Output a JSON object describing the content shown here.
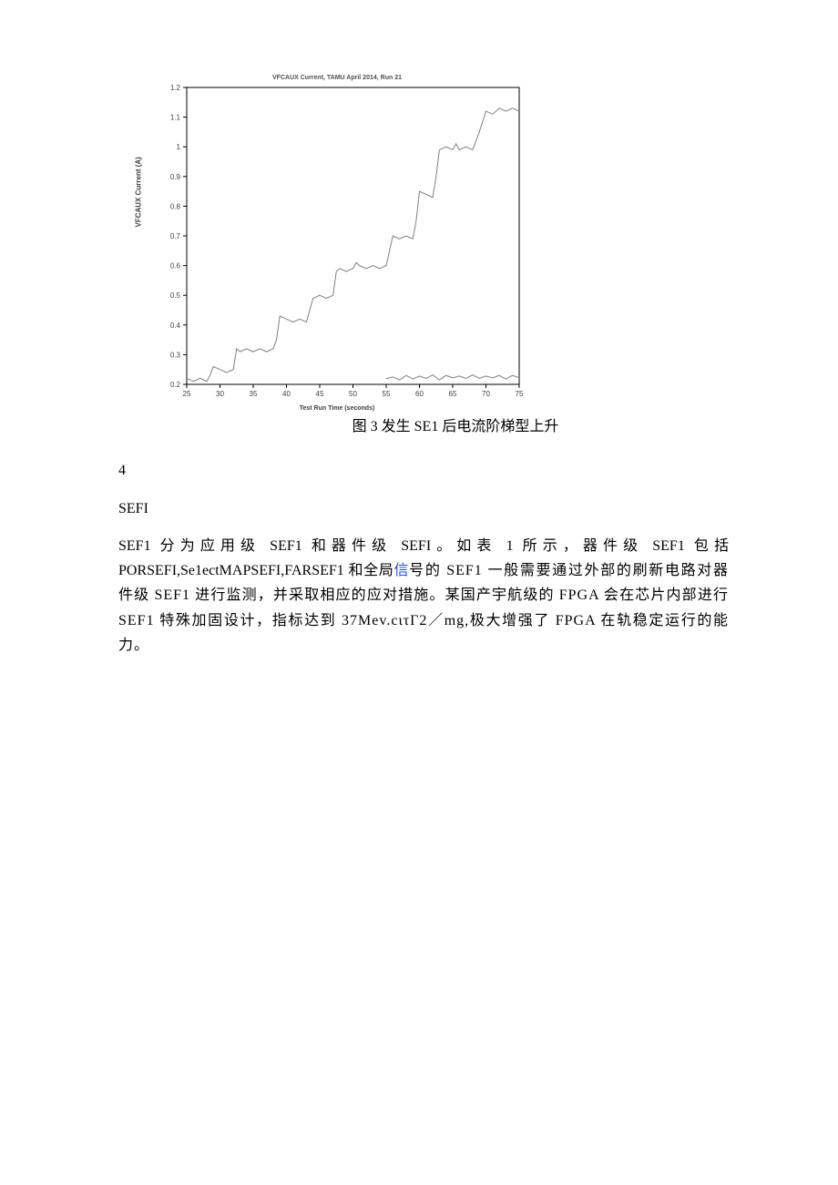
{
  "chart": {
    "type": "line",
    "title": "VFCAUX Current, TAMU April 2014, Run 21",
    "ylabel": "VFCAUX Current (A)",
    "xlabel": "Test Run Time (seconds)",
    "xlim": [
      25,
      75
    ],
    "ylim": [
      0.2,
      1.2
    ],
    "xticks": [
      25,
      30,
      35,
      40,
      45,
      50,
      55,
      60,
      65,
      70,
      75
    ],
    "yticks": [
      0.2,
      0.3,
      0.4,
      0.5,
      0.6,
      0.7,
      0.8,
      0.9,
      1.0,
      1.1,
      1.2
    ],
    "series1": {
      "color": "#808080",
      "width": 1,
      "x": [
        25,
        26,
        27,
        28,
        28.5,
        29,
        30,
        31,
        32,
        32.5,
        33,
        34,
        35,
        36,
        37,
        38,
        38.5,
        39,
        40,
        41,
        42,
        43,
        43.5,
        44,
        45,
        46,
        47,
        47.5,
        48,
        49,
        50,
        50.5,
        51,
        52,
        53,
        54,
        55,
        55.5,
        56,
        57,
        58,
        59,
        59.5,
        60,
        61,
        62,
        62.5,
        63,
        64,
        65,
        65.5,
        66,
        67,
        68,
        69,
        70,
        71,
        72,
        73,
        74,
        75
      ],
      "y": [
        0.22,
        0.21,
        0.22,
        0.21,
        0.23,
        0.26,
        0.25,
        0.24,
        0.25,
        0.32,
        0.31,
        0.32,
        0.31,
        0.32,
        0.31,
        0.32,
        0.35,
        0.43,
        0.42,
        0.41,
        0.42,
        0.41,
        0.45,
        0.49,
        0.5,
        0.49,
        0.5,
        0.58,
        0.59,
        0.58,
        0.59,
        0.61,
        0.6,
        0.59,
        0.6,
        0.59,
        0.6,
        0.65,
        0.7,
        0.69,
        0.7,
        0.69,
        0.75,
        0.85,
        0.84,
        0.83,
        0.9,
        0.99,
        1.0,
        0.99,
        1.01,
        0.99,
        1.0,
        0.99,
        1.05,
        1.12,
        1.11,
        1.13,
        1.12,
        1.13,
        1.12
      ]
    },
    "series2": {
      "color": "#808080",
      "width": 1,
      "x": [
        55,
        56,
        57,
        58,
        59,
        60,
        61,
        62,
        63,
        64,
        65,
        66,
        67,
        68,
        69,
        70,
        71,
        72,
        73,
        74,
        75
      ],
      "y": [
        0.22,
        0.225,
        0.215,
        0.23,
        0.218,
        0.228,
        0.22,
        0.232,
        0.215,
        0.23,
        0.222,
        0.228,
        0.22,
        0.232,
        0.22,
        0.228,
        0.222,
        0.23,
        0.218,
        0.23,
        0.222
      ]
    },
    "axis_color": "#000000",
    "tick_color": "#000000",
    "tick_fontsize": 8,
    "background_color": "#ffffff"
  },
  "caption": "图 3 发生 SE1 后电流阶梯型上升",
  "section_number": "4",
  "section_heading": "SEFI",
  "paragraph_parts": {
    "p1": "SEF1 分为应用级 SEF1 和器件级 SEFI。如表 1 所示，器件级 SEF1 包括 PORSEFI,Se1ectMAPSEFI,FARSEF1 和全局",
    "p1_highlight": "信",
    "p1b": "号的 SEF1 一般需要通过外部的刷新电路对器件级 SEF1 进行监测，并采取相应的应对措施。某国产宇航级的 FPGA 会在芯片内部进行 SEF1 特殊加固设计，指标达到 37Mev.cιτΓ2／mg,极大增强了 FPGA 在轨稳定运行的能力。"
  }
}
